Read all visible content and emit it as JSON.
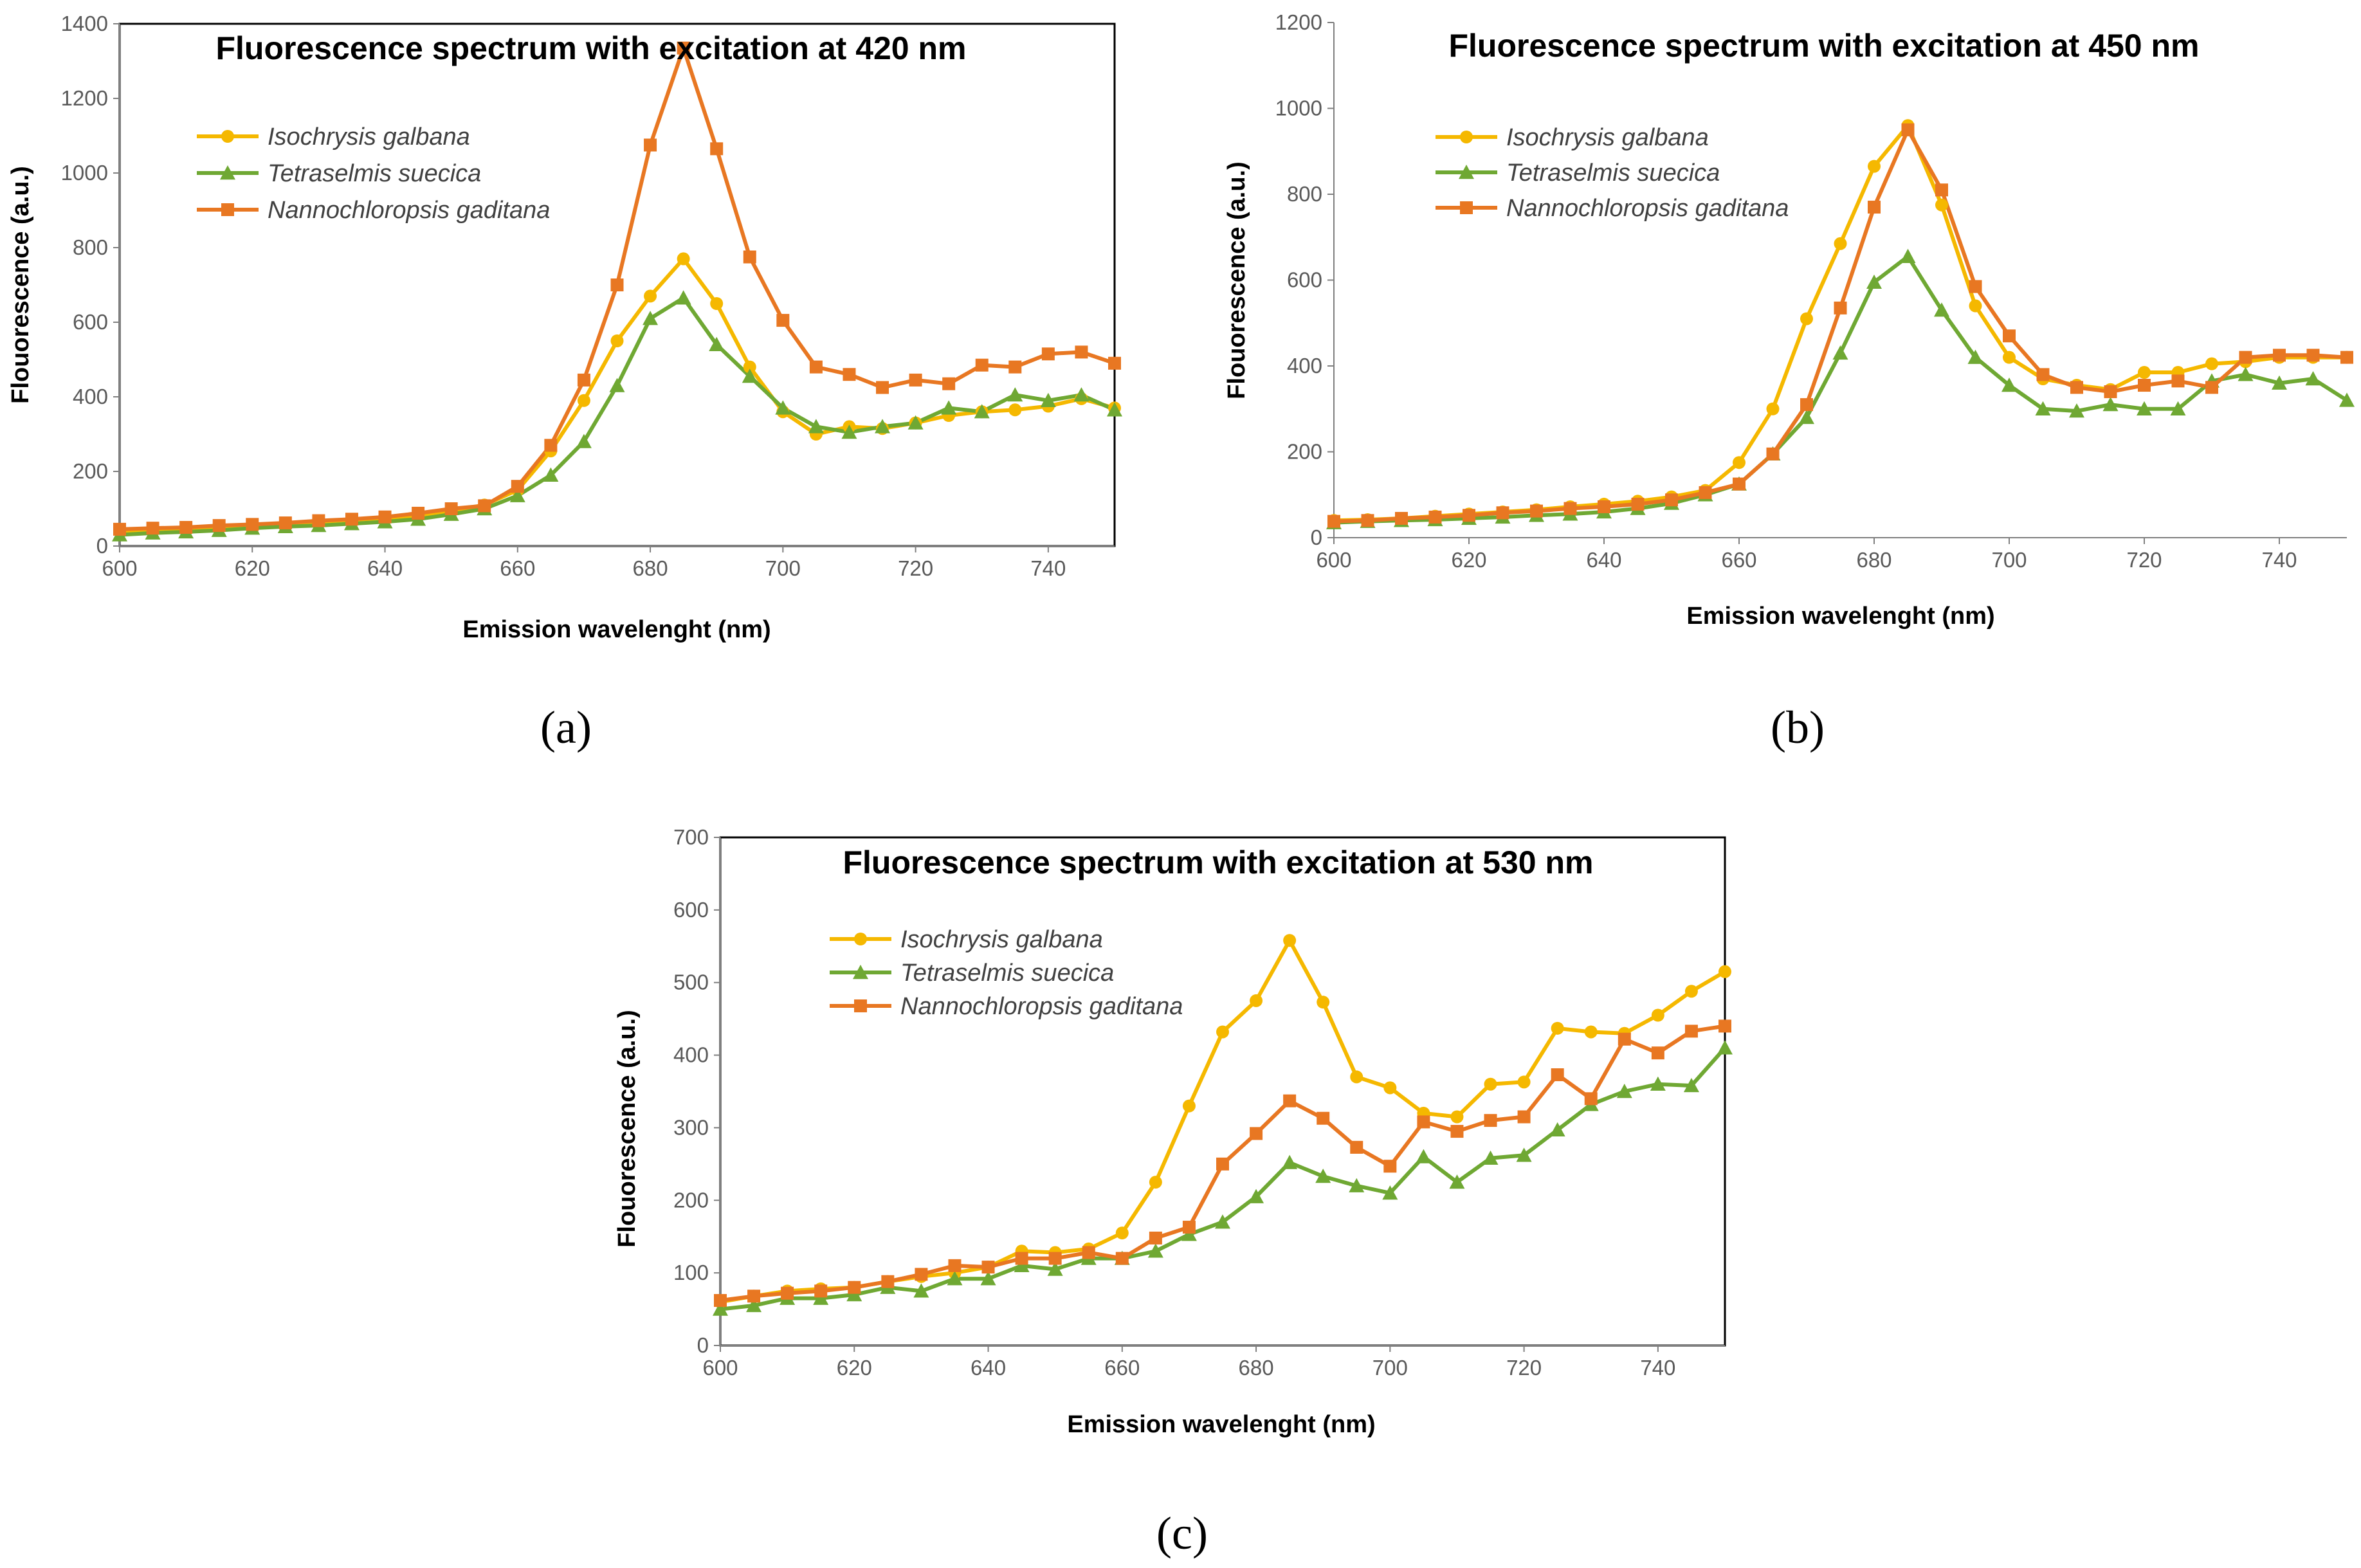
{
  "figure": {
    "panel_labels": [
      "(a)",
      "(b)",
      "(c)"
    ],
    "series_colors": [
      "#F5B800",
      "#6FA833",
      "#E87722"
    ]
  },
  "chart_data": [
    {
      "type": "line",
      "panel": "(a)",
      "title": "Fluorescence spectrum with excitation at 420 nm",
      "xlabel": "Emission wavelenght (nm)",
      "ylabel": "Flouorescence (a.u.)",
      "xlim": [
        600,
        750
      ],
      "ylim": [
        0,
        1400
      ],
      "xticks": [
        600,
        620,
        640,
        660,
        680,
        700,
        720,
        740
      ],
      "yticks": [
        0,
        200,
        400,
        600,
        800,
        1000,
        1200,
        1400
      ],
      "legend_position": "top-left",
      "x": [
        600,
        605,
        610,
        615,
        620,
        625,
        630,
        635,
        640,
        645,
        650,
        655,
        660,
        665,
        670,
        675,
        680,
        685,
        690,
        695,
        700,
        705,
        710,
        715,
        720,
        725,
        730,
        735,
        740,
        745,
        750
      ],
      "series": [
        {
          "name": "Isochrysis galbana",
          "color": "#F5B800",
          "marker": "circle",
          "values": [
            40,
            42,
            45,
            50,
            55,
            60,
            65,
            70,
            75,
            82,
            95,
            110,
            150,
            255,
            390,
            550,
            670,
            770,
            650,
            480,
            360,
            300,
            320,
            315,
            330,
            350,
            360,
            365,
            375,
            395,
            370
          ]
        },
        {
          "name": "Tetraselmis suecica",
          "color": "#6FA833",
          "marker": "triangle",
          "values": [
            30,
            35,
            38,
            42,
            48,
            52,
            55,
            60,
            65,
            72,
            85,
            100,
            135,
            190,
            280,
            430,
            610,
            665,
            540,
            455,
            370,
            320,
            305,
            320,
            330,
            370,
            360,
            405,
            390,
            405,
            365
          ]
        },
        {
          "name": "Nannochloropsis gaditana",
          "color": "#E87722",
          "marker": "square",
          "values": [
            45,
            48,
            50,
            55,
            58,
            62,
            68,
            72,
            78,
            88,
            100,
            108,
            160,
            270,
            445,
            700,
            1075,
            1335,
            1065,
            775,
            605,
            480,
            460,
            425,
            445,
            435,
            485,
            480,
            515,
            520,
            490
          ]
        }
      ]
    },
    {
      "type": "line",
      "panel": "(b)",
      "title": "Fluorescence spectrum with excitation at 450 nm",
      "xlabel": "Emission wavelenght (nm)",
      "ylabel": "Flouorescence (a.u.)",
      "xlim": [
        600,
        750
      ],
      "ylim": [
        0,
        1200
      ],
      "xticks": [
        600,
        620,
        640,
        660,
        680,
        700,
        720,
        740
      ],
      "yticks": [
        0,
        200,
        400,
        600,
        800,
        1000,
        1200
      ],
      "legend_position": "top-left",
      "x": [
        600,
        605,
        610,
        615,
        620,
        625,
        630,
        635,
        640,
        645,
        650,
        655,
        660,
        665,
        670,
        675,
        680,
        685,
        690,
        695,
        700,
        705,
        710,
        715,
        720,
        725,
        730,
        735,
        740,
        745,
        750
      ],
      "series": [
        {
          "name": "Isochrysis galbana",
          "color": "#F5B800",
          "marker": "circle",
          "values": [
            40,
            42,
            45,
            50,
            55,
            60,
            65,
            72,
            78,
            85,
            95,
            110,
            175,
            300,
            510,
            685,
            865,
            960,
            775,
            540,
            420,
            370,
            355,
            345,
            385,
            385,
            405,
            410,
            420,
            420,
            420
          ]
        },
        {
          "name": "Tetraselmis suecica",
          "color": "#6FA833",
          "marker": "triangle",
          "values": [
            35,
            38,
            40,
            42,
            45,
            48,
            52,
            55,
            60,
            68,
            80,
            100,
            125,
            195,
            280,
            430,
            595,
            655,
            530,
            420,
            355,
            300,
            295,
            310,
            300,
            300,
            365,
            380,
            360,
            370,
            320
          ]
        },
        {
          "name": "Nannochloropsis gaditana",
          "color": "#E87722",
          "marker": "square",
          "values": [
            38,
            40,
            45,
            48,
            52,
            58,
            62,
            68,
            72,
            78,
            88,
            105,
            125,
            195,
            310,
            535,
            770,
            950,
            810,
            585,
            470,
            380,
            350,
            340,
            355,
            365,
            350,
            420,
            425,
            425,
            420
          ]
        }
      ]
    },
    {
      "type": "line",
      "panel": "(c)",
      "title": "Fluorescence spectrum with excitation at 530 nm",
      "xlabel": "Emission wavelenght (nm)",
      "ylabel": "Flouorescence (a.u.)",
      "xlim": [
        600,
        750
      ],
      "ylim": [
        0,
        700
      ],
      "xticks": [
        600,
        620,
        640,
        660,
        680,
        700,
        720,
        740
      ],
      "yticks": [
        0,
        100,
        200,
        300,
        400,
        500,
        600,
        700
      ],
      "legend_position": "top-left",
      "x": [
        600,
        605,
        610,
        615,
        620,
        625,
        630,
        635,
        640,
        645,
        650,
        655,
        660,
        665,
        670,
        675,
        680,
        685,
        690,
        695,
        700,
        705,
        710,
        715,
        720,
        725,
        730,
        735,
        740,
        745,
        750
      ],
      "series": [
        {
          "name": "Isochrysis galbana",
          "color": "#F5B800",
          "marker": "circle",
          "values": [
            60,
            68,
            75,
            78,
            80,
            88,
            95,
            100,
            108,
            130,
            128,
            133,
            155,
            225,
            330,
            432,
            475,
            558,
            473,
            370,
            355,
            320,
            315,
            360,
            363,
            437,
            432,
            430,
            455,
            488,
            515
          ]
        },
        {
          "name": "Tetraselmis suecica",
          "color": "#6FA833",
          "marker": "triangle",
          "values": [
            50,
            55,
            65,
            65,
            70,
            80,
            75,
            92,
            92,
            110,
            105,
            120,
            120,
            130,
            153,
            170,
            205,
            252,
            233,
            220,
            210,
            260,
            225,
            258,
            262,
            297,
            332,
            350,
            360,
            358,
            410
          ]
        },
        {
          "name": "Nannochloropsis gaditana",
          "color": "#E87722",
          "marker": "square",
          "values": [
            62,
            68,
            72,
            75,
            80,
            88,
            98,
            110,
            108,
            120,
            120,
            128,
            120,
            148,
            163,
            250,
            292,
            337,
            313,
            273,
            247,
            308,
            295,
            310,
            315,
            373,
            340,
            422,
            403,
            433,
            440
          ]
        }
      ]
    }
  ]
}
